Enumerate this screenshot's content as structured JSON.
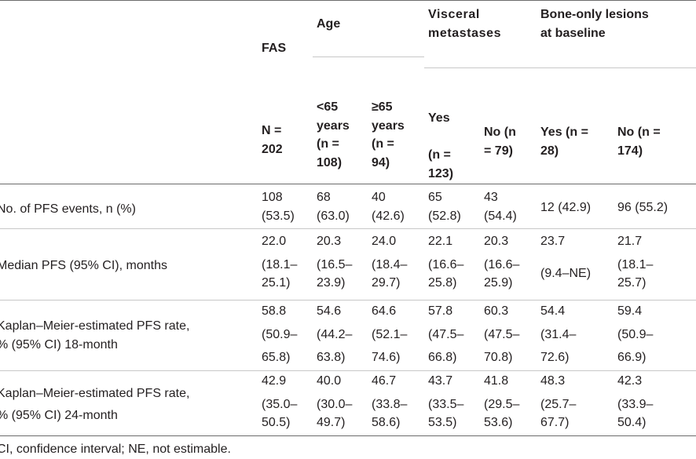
{
  "table": {
    "header": {
      "fas": "FAS",
      "age": "Age",
      "visceral": [
        "Visceral",
        "metastases"
      ],
      "bone": [
        "Bone-only lesions",
        "at baseline"
      ],
      "subheaders": [
        [
          "N =",
          "202"
        ],
        [
          "<65",
          "years",
          "(n =",
          "108)"
        ],
        [
          "≥65",
          "years",
          "(n =",
          "94)"
        ],
        [
          "Yes",
          "",
          "(n =",
          "123)"
        ],
        [
          "No (n",
          "= 79)"
        ],
        [
          "Yes (n =",
          "28)"
        ],
        [
          "No (n =",
          "174)"
        ]
      ]
    },
    "rows": [
      {
        "label": [
          "No. of PFS events, n (%)"
        ],
        "cells": [
          [
            "108",
            "(53.5)"
          ],
          [
            "68",
            "(63.0)"
          ],
          [
            "40",
            "(42.6)"
          ],
          [
            "65",
            "(52.8)"
          ],
          [
            "43",
            "(54.4)"
          ],
          [
            "12 (42.9)"
          ],
          [
            "96 (55.2)"
          ]
        ]
      },
      {
        "label": [
          "Median PFS (95% CI), months"
        ],
        "cells": [
          [
            "22.0",
            "(18.1–",
            "25.1)"
          ],
          [
            "20.3",
            "(16.5–",
            "23.9)"
          ],
          [
            "24.0",
            "(18.4–",
            "29.7)"
          ],
          [
            "22.1",
            "(16.6–",
            "25.8)"
          ],
          [
            "20.3",
            "(16.6–",
            "25.9)"
          ],
          [
            "23.7",
            "(9.4–NE)"
          ],
          [
            "21.7",
            "(18.1–",
            "25.7)"
          ]
        ]
      },
      {
        "label": [
          "Kaplan–Meier-estimated PFS rate,",
          "% (95% CI) 18-month"
        ],
        "cells": [
          [
            "58.8",
            "(50.9–",
            "65.8)"
          ],
          [
            "54.6",
            "(44.2–",
            "63.8)"
          ],
          [
            "64.6",
            "(52.1–",
            "74.6)"
          ],
          [
            "57.8",
            "(47.5–",
            "66.8)"
          ],
          [
            "60.3",
            "(47.5–",
            "70.8)"
          ],
          [
            "54.4",
            "(31.4–",
            "72.6)"
          ],
          [
            "59.4",
            "(50.9–",
            "66.9)"
          ]
        ]
      },
      {
        "label": [
          "Kaplan–Meier-estimated PFS rate,",
          "% (95% CI) 24-month"
        ],
        "cells": [
          [
            "42.9",
            "(35.0–",
            "50.5)"
          ],
          [
            "40.0",
            "(30.0–",
            "49.7)"
          ],
          [
            "46.7",
            "(33.8–",
            "58.6)"
          ],
          [
            "43.7",
            "(33.5–",
            "53.5)"
          ],
          [
            "41.8",
            "(29.5–",
            "53.6)"
          ],
          [
            "48.3",
            "(25.7–",
            "67.7)"
          ],
          [
            "42.3",
            "(33.9–",
            "50.4)"
          ]
        ]
      }
    ],
    "footnote": "CI, confidence interval; NE, not estimable."
  }
}
